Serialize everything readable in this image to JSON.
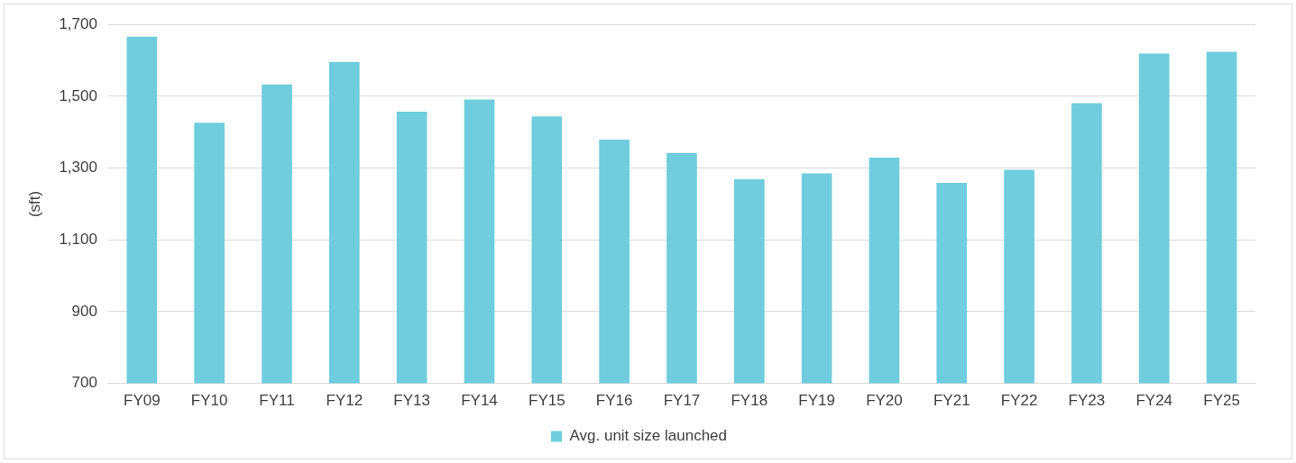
{
  "chart_data": {
    "type": "bar",
    "ylabel": "(sft)",
    "categories": [
      "FY09",
      "FY10",
      "FY11",
      "FY12",
      "FY13",
      "FY14",
      "FY15",
      "FY16",
      "FY17",
      "FY18",
      "FY19",
      "FY20",
      "FY21",
      "FY22",
      "FY23",
      "FY24",
      "FY25"
    ],
    "series": [
      {
        "name": "Avg. unit size launched",
        "color": "#70cddd",
        "values": [
          1666,
          1426,
          1533,
          1596,
          1457,
          1491,
          1444,
          1379,
          1342,
          1269,
          1285,
          1329,
          1259,
          1295,
          1481,
          1619,
          1624
        ]
      }
    ],
    "ylim": [
      700,
      1700
    ],
    "yticks": [
      {
        "value": 700,
        "label": "700"
      },
      {
        "value": 900,
        "label": "900"
      },
      {
        "value": 1100,
        "label": "1,100"
      },
      {
        "value": 1300,
        "label": "1,300"
      },
      {
        "value": 1500,
        "label": "1,500"
      },
      {
        "value": 1700,
        "label": "1,700"
      }
    ],
    "grid": "y",
    "legend": "bottom"
  }
}
